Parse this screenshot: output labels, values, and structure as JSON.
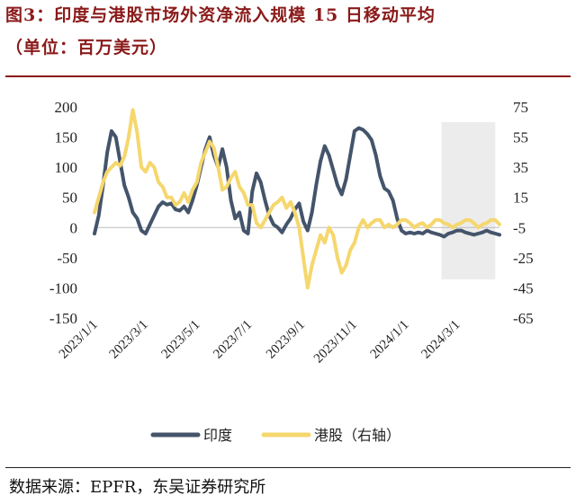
{
  "title": {
    "line1": "图3：印度与港股市场外资净流入规模 15 日移动平均",
    "line2": "（单位：百万美元）"
  },
  "source": "数据来源：EPFR，东吴证券研究所",
  "chart_data": {
    "type": "line",
    "x_tick_labels": [
      "2023/1/1",
      "2023/3/1",
      "2023/5/1",
      "2023/7/1",
      "2023/9/1",
      "2023/11/1",
      "2024/1/1",
      "2024/3/1"
    ],
    "y_left": {
      "range": [
        -150,
        200
      ],
      "ticks": [
        -150,
        -100,
        -50,
        0,
        50,
        100,
        150,
        200
      ]
    },
    "y_right": {
      "range": [
        -65,
        75
      ],
      "ticks": [
        -65,
        -45,
        -25,
        -5,
        15,
        35,
        55,
        75
      ]
    },
    "highlight": {
      "from": "2024/2/12",
      "to": "2024/4/15",
      "color": "#ececec"
    },
    "colors": {
      "india": "#44546a",
      "hk": "#f5d76e",
      "title": "#8b1a1a"
    },
    "series": [
      {
        "name": "印度",
        "axis": "left",
        "x": [
          0,
          5,
          10,
          15,
          20,
          25,
          30,
          35,
          40,
          45,
          50,
          55,
          60,
          65,
          70,
          75,
          80,
          85,
          90,
          95,
          100,
          105,
          110,
          115,
          120,
          125,
          130,
          135,
          140,
          145,
          150,
          155,
          160,
          165,
          170,
          175,
          180,
          185,
          190,
          195,
          200,
          205,
          210,
          215,
          220,
          225,
          230,
          235,
          240,
          245,
          250,
          255,
          260,
          265,
          270,
          275,
          280,
          285,
          290,
          295,
          300,
          305,
          310,
          315,
          320,
          325,
          330,
          335,
          340,
          345,
          350,
          355,
          360,
          365,
          370,
          375,
          380,
          385,
          390,
          395,
          400,
          405,
          410,
          415,
          420,
          425,
          430,
          435,
          440,
          445,
          450,
          455,
          460,
          465,
          470,
          475
        ],
        "values": [
          -10,
          20,
          70,
          125,
          160,
          150,
          110,
          70,
          50,
          25,
          15,
          -5,
          -10,
          5,
          20,
          35,
          42,
          38,
          40,
          30,
          28,
          35,
          25,
          45,
          70,
          100,
          130,
          150,
          120,
          100,
          130,
          100,
          45,
          15,
          25,
          -5,
          -10,
          60,
          90,
          75,
          45,
          20,
          5,
          0,
          -8,
          5,
          15,
          30,
          40,
          10,
          -5,
          25,
          70,
          110,
          135,
          120,
          95,
          70,
          55,
          80,
          120,
          160,
          165,
          162,
          155,
          145,
          120,
          85,
          65,
          60,
          45,
          15,
          -5,
          -10,
          -8,
          -10,
          -8,
          -10,
          -5,
          -8,
          -10,
          -12,
          -15,
          -10,
          -8,
          -5,
          -5,
          -8,
          -10,
          -12,
          -10,
          -8,
          -5,
          -8,
          -10,
          -12
        ]
      },
      {
        "name": "港股（右轴）",
        "axis": "right",
        "x": [
          0,
          5,
          10,
          15,
          20,
          25,
          30,
          35,
          40,
          45,
          50,
          55,
          60,
          65,
          70,
          75,
          80,
          85,
          90,
          95,
          100,
          105,
          110,
          115,
          120,
          125,
          130,
          135,
          140,
          145,
          150,
          155,
          160,
          165,
          170,
          175,
          180,
          185,
          190,
          195,
          200,
          205,
          210,
          215,
          220,
          225,
          230,
          235,
          240,
          245,
          250,
          255,
          260,
          265,
          270,
          275,
          280,
          285,
          290,
          295,
          300,
          305,
          310,
          315,
          320,
          325,
          330,
          335,
          340,
          345,
          350,
          355,
          360,
          365,
          370,
          375,
          380,
          385,
          390,
          395,
          400,
          405,
          410,
          415,
          420,
          425,
          430,
          435,
          440,
          445,
          450,
          455,
          460,
          465,
          470,
          475
        ],
        "values": [
          5,
          15,
          25,
          32,
          35,
          38,
          36,
          42,
          55,
          73,
          58,
          35,
          32,
          38,
          35,
          25,
          22,
          15,
          15,
          10,
          12,
          18,
          12,
          20,
          25,
          38,
          45,
          52,
          48,
          35,
          20,
          22,
          28,
          32,
          22,
          18,
          10,
          10,
          -2,
          -5,
          0,
          5,
          10,
          12,
          15,
          8,
          12,
          5,
          -5,
          -25,
          -45,
          -30,
          -20,
          -10,
          -15,
          -5,
          -10,
          -25,
          -35,
          -30,
          -20,
          -15,
          -5,
          0,
          -5,
          -2,
          0,
          0,
          -5,
          -3,
          -5,
          -3,
          0,
          0,
          -2,
          -5,
          -3,
          -2,
          -5,
          -3,
          0,
          0,
          -2,
          -3,
          -5,
          -3,
          -2,
          0,
          0,
          -2,
          -5,
          -3,
          -2,
          0,
          0,
          -3
        ]
      }
    ],
    "legend": [
      {
        "label": "印度"
      },
      {
        "label": "港股（右轴）"
      }
    ]
  }
}
